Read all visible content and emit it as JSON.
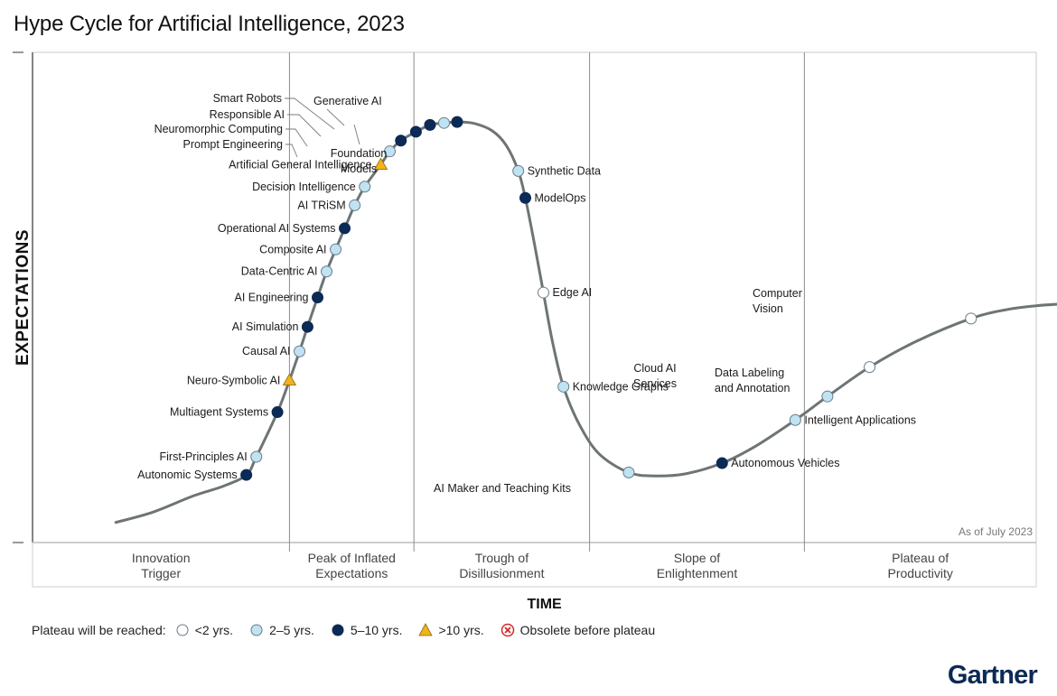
{
  "title": "Hype Cycle for Artificial Intelligence, 2023",
  "brand": "Gartner",
  "chart_data": {
    "type": "scatter",
    "title": "Hype Cycle for Artificial Intelligence, 2023",
    "xlabel": "TIME",
    "ylabel": "EXPECTATIONS",
    "note": "As of July 2023",
    "phases": [
      {
        "name": "Innovation Trigger",
        "line1": "Innovation",
        "line2": "Trigger"
      },
      {
        "name": "Peak of Inflated Expectations",
        "line1": "Peak of Inflated",
        "line2": "Expectations"
      },
      {
        "name": "Trough of Disillusionment",
        "line1": "Trough of",
        "line2": "Disillusionment"
      },
      {
        "name": "Slope of Enlightenment",
        "line1": "Slope of",
        "line2": "Enlightenment"
      },
      {
        "name": "Plateau of Productivity",
        "line1": "Plateau of",
        "line2": "Productivity"
      }
    ],
    "legend_title": "Plateau will be reached:",
    "legend": [
      {
        "key": "lt2",
        "label": "<2 yrs.",
        "color": "#ffffff",
        "shape": "circle"
      },
      {
        "key": "2to5",
        "label": "2–5 yrs.",
        "color": "#bfe3f3",
        "shape": "circle"
      },
      {
        "key": "5to10",
        "label": "5–10 yrs.",
        "color": "#0b2a55",
        "shape": "circle"
      },
      {
        "key": "gt10",
        "label": ">10 yrs.",
        "color": "#f2b21b",
        "shape": "triangle"
      },
      {
        "key": "obsolete",
        "label": "Obsolete before plateau",
        "color": "#d62728",
        "shape": "x-circle"
      }
    ],
    "points": [
      {
        "name": "Autonomic Systems",
        "lines": [
          "Autonomic Systems"
        ],
        "x": 0.213,
        "y": 0.138,
        "cat": "5to10"
      },
      {
        "name": "First-Principles AI",
        "lines": [
          "First-Principles AI"
        ],
        "x": 0.223,
        "y": 0.175,
        "cat": "2to5"
      },
      {
        "name": "Multiagent Systems",
        "lines": [
          "Multiagent Systems"
        ],
        "x": 0.244,
        "y": 0.266,
        "cat": "5to10"
      },
      {
        "name": "Neuro-Symbolic AI",
        "lines": [
          "Neuro-Symbolic AI"
        ],
        "x": 0.256,
        "y": 0.331,
        "cat": "gt10"
      },
      {
        "name": "Causal AI",
        "lines": [
          "Causal AI"
        ],
        "x": 0.266,
        "y": 0.39,
        "cat": "2to5"
      },
      {
        "name": "AI Simulation",
        "lines": [
          "AI Simulation"
        ],
        "x": 0.274,
        "y": 0.44,
        "cat": "5to10"
      },
      {
        "name": "AI Engineering",
        "lines": [
          "AI Engineering"
        ],
        "x": 0.284,
        "y": 0.5,
        "cat": "5to10"
      },
      {
        "name": "Data-Centric AI",
        "lines": [
          "Data-Centric AI"
        ],
        "x": 0.293,
        "y": 0.553,
        "cat": "2to5"
      },
      {
        "name": "Composite AI",
        "lines": [
          "Composite AI"
        ],
        "x": 0.302,
        "y": 0.598,
        "cat": "2to5"
      },
      {
        "name": "Operational AI Systems",
        "lines": [
          "Operational AI Systems"
        ],
        "x": 0.311,
        "y": 0.641,
        "cat": "5to10"
      },
      {
        "name": "AI TRiSM",
        "lines": [
          "AI TRiSM"
        ],
        "x": 0.321,
        "y": 0.688,
        "cat": "2to5"
      },
      {
        "name": "Decision Intelligence",
        "lines": [
          "Decision Intelligence"
        ],
        "x": 0.331,
        "y": 0.726,
        "cat": "2to5"
      },
      {
        "name": "Artificial General Intelligence",
        "lines": [
          "Artificial General Intelligence"
        ],
        "x": 0.347,
        "y": 0.771,
        "cat": "gt10"
      },
      {
        "name": "Prompt Engineering",
        "lines": [
          "Prompt Engineering"
        ],
        "x": 0.356,
        "y": 0.798,
        "cat": "2to5"
      },
      {
        "name": "Neuromorphic Computing",
        "lines": [
          "Neuromorphic Computing"
        ],
        "x": 0.367,
        "y": 0.82,
        "cat": "5to10"
      },
      {
        "name": "Responsible AI",
        "lines": [
          "Responsible AI"
        ],
        "x": 0.382,
        "y": 0.838,
        "cat": "5to10"
      },
      {
        "name": "Smart Robots",
        "lines": [
          "Smart Robots"
        ],
        "x": 0.396,
        "y": 0.852,
        "cat": "5to10"
      },
      {
        "name": "Generative AI",
        "lines": [
          "Generative AI"
        ],
        "x": 0.41,
        "y": 0.856,
        "cat": "2to5"
      },
      {
        "name": "Foundation Models",
        "lines": [
          "Foundation",
          "Models"
        ],
        "x": 0.423,
        "y": 0.858,
        "cat": "5to10"
      },
      {
        "name": "Synthetic Data",
        "lines": [
          "Synthetic Data"
        ],
        "x": 0.484,
        "y": 0.758,
        "cat": "2to5"
      },
      {
        "name": "ModelOps",
        "lines": [
          "ModelOps"
        ],
        "x": 0.491,
        "y": 0.703,
        "cat": "5to10"
      },
      {
        "name": "Edge AI",
        "lines": [
          "Edge AI"
        ],
        "x": 0.509,
        "y": 0.51,
        "cat": "lt2"
      },
      {
        "name": "Knowledge Graphs",
        "lines": [
          "Knowledge Graphs"
        ],
        "x": 0.529,
        "y": 0.318,
        "cat": "2to5"
      },
      {
        "name": "AI Maker and Teaching Kits",
        "lines": [
          "AI Maker and Teaching Kits"
        ],
        "x": 0.594,
        "y": 0.143,
        "cat": "2to5"
      },
      {
        "name": "Autonomous Vehicles",
        "lines": [
          "Autonomous Vehicles"
        ],
        "x": 0.687,
        "y": 0.162,
        "cat": "5to10"
      },
      {
        "name": "Intelligent Applications",
        "lines": [
          "Intelligent Applications"
        ],
        "x": 0.76,
        "y": 0.25,
        "cat": "2to5"
      },
      {
        "name": "Cloud AI Services",
        "lines": [
          "Cloud AI",
          "Services"
        ],
        "x": 0.792,
        "y": 0.298,
        "cat": "2to5"
      },
      {
        "name": "Data Labeling and Annotation",
        "lines": [
          "Data Labeling",
          "and Annotation"
        ],
        "x": 0.834,
        "y": 0.358,
        "cat": "lt2"
      },
      {
        "name": "Computer Vision",
        "lines": [
          "Computer",
          "Vision"
        ],
        "x": 0.935,
        "y": 0.457,
        "cat": "lt2"
      }
    ]
  }
}
